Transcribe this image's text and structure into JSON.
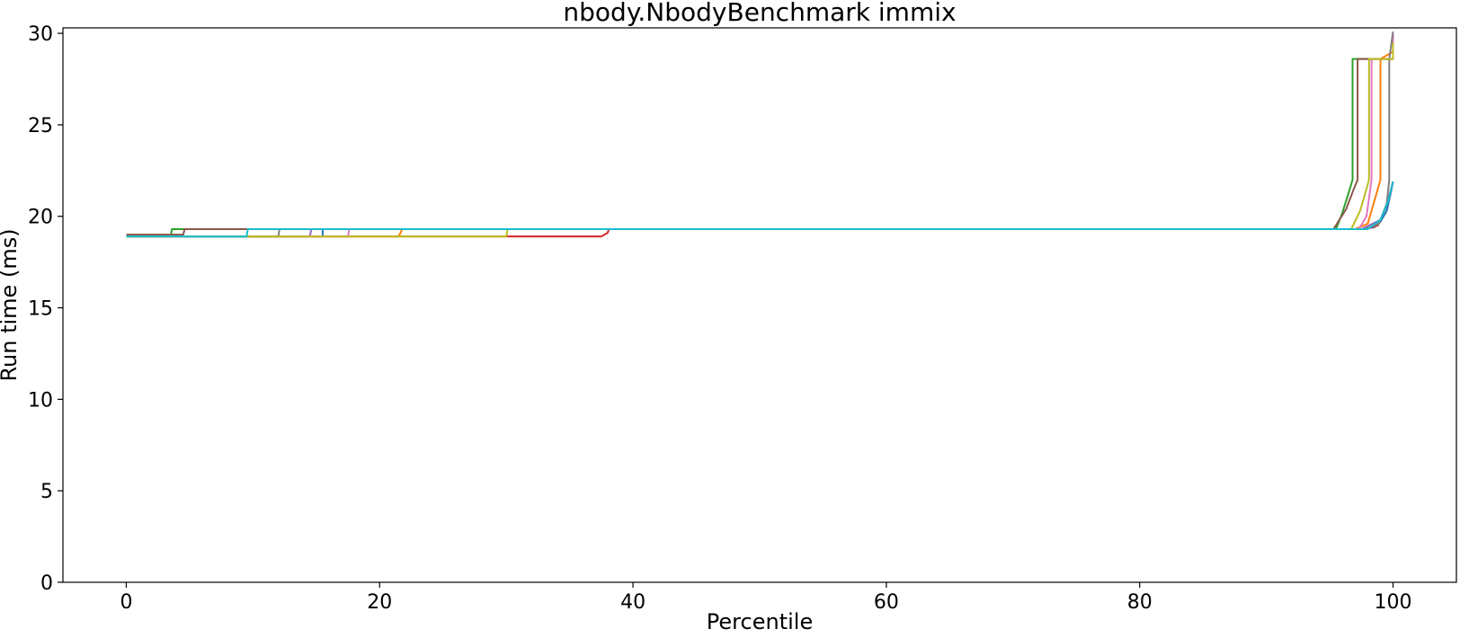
{
  "chart_data": {
    "type": "line",
    "title": "nbody.NbodyBenchmark immix",
    "xlabel": "Percentile",
    "ylabel": "Run time (ms)",
    "xlim": [
      -5,
      105
    ],
    "ylim": [
      0,
      30.3
    ],
    "xticks": [
      0,
      20,
      40,
      60,
      80,
      100
    ],
    "yticks": [
      0,
      5,
      10,
      15,
      20,
      25,
      30
    ],
    "grid": false,
    "legend": "none",
    "series": [
      {
        "color": "#1f77b4",
        "x": [
          0,
          15.5,
          15.5,
          97.5,
          98.5,
          99.0,
          99.5,
          99.8,
          100
        ],
        "y": [
          18.9,
          18.9,
          19.3,
          19.3,
          19.4,
          19.7,
          20.3,
          21.2,
          21.9
        ]
      },
      {
        "color": "#ff7f0e",
        "x": [
          0,
          21.5,
          21.8,
          97.0,
          98.0,
          98.8,
          99.0,
          99.0,
          100
        ],
        "y": [
          18.9,
          18.9,
          19.3,
          19.3,
          19.6,
          21.5,
          22.0,
          28.6,
          29.0
        ]
      },
      {
        "color": "#2ca02c",
        "x": [
          0,
          3.5,
          3.6,
          95.5,
          96.0,
          96.5,
          96.8,
          96.8,
          100
        ],
        "y": [
          18.9,
          18.9,
          19.3,
          19.3,
          20.2,
          21.3,
          22.0,
          28.6,
          28.6
        ]
      },
      {
        "color": "#d62728",
        "x": [
          0,
          37.5,
          38.0,
          38.1,
          97.8,
          98.8,
          99.5,
          100
        ],
        "y": [
          18.9,
          18.9,
          19.1,
          19.3,
          19.3,
          19.5,
          20.6,
          21.9
        ]
      },
      {
        "color": "#9467bd",
        "x": [
          0,
          14.5,
          14.6,
          97.5,
          99.0,
          99.7,
          100
        ],
        "y": [
          18.9,
          18.9,
          19.3,
          19.3,
          19.8,
          21.0,
          21.9
        ]
      },
      {
        "color": "#8c564b",
        "x": [
          0,
          4.5,
          4.6,
          95.3,
          96.3,
          96.9,
          97.2,
          97.2,
          100
        ],
        "y": [
          19.0,
          19.0,
          19.3,
          19.3,
          20.4,
          21.5,
          22.0,
          28.6,
          28.6
        ]
      },
      {
        "color": "#e377c2",
        "x": [
          0,
          17.5,
          17.6,
          97.3,
          97.9,
          98.2,
          98.3,
          98.3,
          100,
          100
        ],
        "y": [
          18.9,
          18.9,
          19.3,
          19.3,
          20.0,
          21.5,
          22.0,
          28.6,
          28.6,
          30.0
        ]
      },
      {
        "color": "#7f7f7f",
        "x": [
          0,
          12.0,
          12.1,
          97.8,
          98.9,
          99.5,
          99.7,
          99.7,
          100
        ],
        "y": [
          18.9,
          18.9,
          19.3,
          19.3,
          19.6,
          20.7,
          22.0,
          28.6,
          30.1
        ]
      },
      {
        "color": "#bcbd22",
        "x": [
          0,
          30.0,
          30.1,
          96.7,
          97.4,
          97.9,
          98.1,
          98.1,
          100,
          100
        ],
        "y": [
          18.9,
          18.9,
          19.3,
          19.3,
          20.3,
          21.5,
          22.0,
          28.6,
          28.6,
          29.5
        ]
      },
      {
        "color": "#17becf",
        "x": [
          0,
          9.5,
          9.6,
          98.0,
          99.0,
          99.6,
          100
        ],
        "y": [
          18.9,
          18.9,
          19.3,
          19.3,
          19.8,
          20.8,
          21.9
        ]
      }
    ]
  }
}
